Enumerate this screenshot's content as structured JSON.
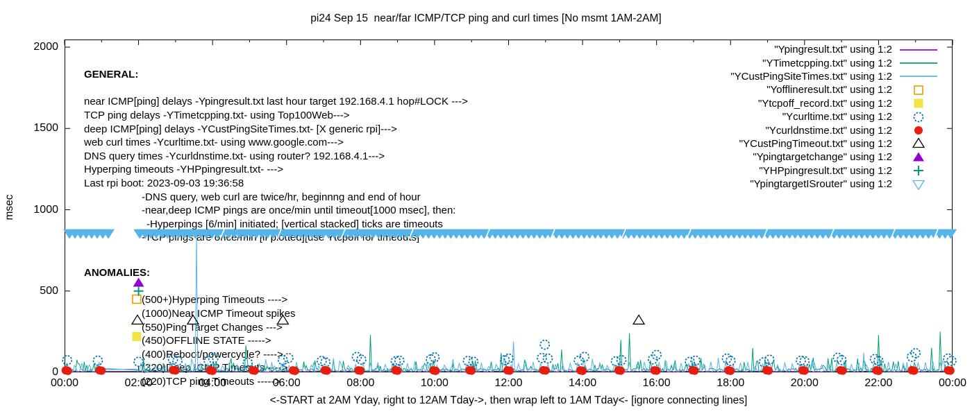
{
  "general": {
    "heading": "GENERAL:",
    "lines": [
      {
        "text": "near ICMP[ping] delays -Ypingresult.txt last hour target 192.168.4.1 hop#LOCK --->",
        "indent": 0
      },
      {
        "text": "TCP ping delays -YTimetcpping.txt- using Top100Web--->",
        "indent": 0
      },
      {
        "text": "deep ICMP[ping] delays -YCustPingSiteTimes.txt- [X generic rpi]--->",
        "indent": 0
      },
      {
        "text": "web curl times -Ycurltime.txt- using www.google.com--->",
        "indent": 0
      },
      {
        "text": "DNS query times -Ycurldnstime.txt- using router? 192.168.4.1--->",
        "indent": 0
      },
      {
        "text": "Hyperping timeouts -YHPpingresult.txt- --->",
        "indent": 0
      },
      {
        "text": "Last rpi boot: 2023-09-03 19:36:58",
        "indent": 0
      },
      {
        "text": "-DNS query, web curl are twice/hr, beginnng and end of hour",
        "indent": 1
      },
      {
        "text": "-near,deep ICMP pings are once/min until timeout[1000 msec], then:",
        "indent": 1
      },
      {
        "text": "-Hyperpings [6/min] initiated; [vertical stacked] ticks are timeouts",
        "indent": 2
      },
      {
        "text": "-TCP pings are once/min [if plotted][use Ytcpoff for timeouts]",
        "indent": 1
      }
    ]
  },
  "anomalies": {
    "heading": "ANOMALIES:",
    "lines": [
      {
        "text": "(500+)Hyperping Timeouts ---->",
        "indent": 1
      },
      {
        "text": "(1000)Near ICMP Timeout spikes",
        "indent": 1
      },
      {
        "text": "(550)Ping Target Changes --->",
        "indent": 1
      },
      {
        "text": "(450)OFFLINE STATE ----->",
        "indent": 1
      },
      {
        "text": "(400)Reboot/powercycle? ---->",
        "indent": 1
      },
      {
        "text": "(320)Deep ICMP Timeouts ---->",
        "indent": 1
      },
      {
        "text": "(220)TCP ping Timeouts ----->",
        "indent": 1
      }
    ]
  },
  "chart_data": {
    "type": "line",
    "title": "pi24 Sep 15  near/far ICMP/TCP ping and curl times [No msmt 1AM-2AM]",
    "xlabel": "<-START at 2AM Yday, right to 12AM Tday->, then wrap left to 1AM Tday<- [ignore connecting lines]",
    "ylabel": "msec",
    "xlim_hours": [
      0,
      24
    ],
    "ylim": [
      0,
      2000
    ],
    "grid": false,
    "legend_position": "top-right",
    "x_tick_hours": [
      0,
      2,
      4,
      6,
      8,
      10,
      12,
      14,
      16,
      18,
      20,
      22,
      24
    ],
    "x_tick_labels": [
      "00:00",
      "02:00",
      "04:00",
      "06:00",
      "08:00",
      "10:00",
      "12:00",
      "14:00",
      "16:00",
      "18:00",
      "20:00",
      "22:00",
      "00:00"
    ],
    "y_ticks": [
      0,
      500,
      1000,
      1500,
      2000
    ],
    "no_measurement_gap_hours": [
      1.05,
      1.93
    ],
    "series": [
      {
        "name": "\"Ypingresult.txt\" using 1:2",
        "kind": "noisy-line",
        "marker": "line",
        "color": "#9400d3",
        "baseline_msec": [
          2,
          8
        ],
        "spikes": []
      },
      {
        "name": "\"YTimetcpping.txt\" using 1:2",
        "kind": "noisy-line",
        "marker": "line",
        "color": "#009e73",
        "baseline_msec": [
          3,
          90
        ],
        "spikes": [
          [
            4.9,
            165
          ],
          [
            8.26,
            230
          ],
          [
            11.8,
            120
          ],
          [
            13.45,
            140
          ],
          [
            15.02,
            200
          ],
          [
            15.28,
            240
          ],
          [
            18.6,
            150
          ],
          [
            22.0,
            230
          ],
          [
            23.45,
            150
          ],
          [
            23.68,
            250
          ]
        ]
      },
      {
        "name": "\"YCustPingSiteTimes.txt\" using 1:2",
        "kind": "sawtooth-line",
        "marker": "line",
        "color": "#56b4e9",
        "baseline_msec": [
          5,
          55
        ],
        "spikes": [
          [
            3.58,
            850
          ],
          [
            12.13,
            190
          ],
          [
            21.6,
            120
          ]
        ]
      },
      {
        "name": "\"Yofflineresult.txt\" using 1:2",
        "kind": "points",
        "marker": "square-open",
        "color": "#e69f00",
        "points": [
          [
            1.95,
            450
          ]
        ]
      },
      {
        "name": "\"Ytcpoff_record.txt\" using 1:2",
        "kind": "points",
        "marker": "square-filled",
        "color": "#f0e442",
        "points": [
          [
            1.95,
            220
          ]
        ]
      },
      {
        "name": "\"Ycurltime.txt\" using 1:2",
        "kind": "points",
        "marker": "circle-open",
        "color": "#0072b2",
        "points": [
          [
            0.07,
            75
          ],
          [
            0.9,
            72
          ],
          [
            2.0,
            65
          ],
          [
            2.93,
            80
          ],
          [
            3.05,
            70
          ],
          [
            3.9,
            68
          ],
          [
            4.02,
            85
          ],
          [
            4.95,
            60
          ],
          [
            5.9,
            75
          ],
          [
            6.05,
            88
          ],
          [
            6.95,
            70
          ],
          [
            7.05,
            62
          ],
          [
            7.9,
            95
          ],
          [
            8.02,
            78
          ],
          [
            8.95,
            68
          ],
          [
            9.05,
            72
          ],
          [
            9.9,
            80
          ],
          [
            10.0,
            92
          ],
          [
            10.9,
            70
          ],
          [
            11.05,
            65
          ],
          [
            11.9,
            75
          ],
          [
            12.0,
            85
          ],
          [
            12.9,
            88
          ],
          [
            12.98,
            170
          ],
          [
            13.06,
            85
          ],
          [
            13.9,
            72
          ],
          [
            14.05,
            95
          ],
          [
            14.9,
            68
          ],
          [
            15.05,
            75
          ],
          [
            15.9,
            80
          ],
          [
            16.0,
            107
          ],
          [
            16.9,
            65
          ],
          [
            17.05,
            72
          ],
          [
            17.9,
            85
          ],
          [
            18.0,
            70
          ],
          [
            18.9,
            62
          ],
          [
            19.05,
            78
          ],
          [
            19.9,
            72
          ],
          [
            20.0,
            68
          ],
          [
            20.9,
            90
          ],
          [
            21.0,
            75
          ],
          [
            21.9,
            82
          ],
          [
            22.0,
            70
          ],
          [
            22.9,
            95
          ],
          [
            23.0,
            118
          ],
          [
            23.88,
            85
          ],
          [
            23.97,
            70
          ]
        ]
      },
      {
        "name": "\"Ycurldnstime.txt\" using 1:2",
        "kind": "points",
        "marker": "circle-filled",
        "color": "#e51e10",
        "points": [
          [
            0.03,
            12
          ],
          [
            0.09,
            9
          ],
          [
            0.94,
            13
          ],
          [
            1.0,
            10
          ],
          [
            2.93,
            14
          ],
          [
            3.0,
            11
          ],
          [
            3.93,
            12
          ],
          [
            4.0,
            9
          ],
          [
            5.08,
            13
          ],
          [
            5.14,
            10
          ],
          [
            6.17,
            12
          ],
          [
            6.23,
            9
          ],
          [
            7.03,
            13
          ],
          [
            7.09,
            10
          ],
          [
            7.94,
            12
          ],
          [
            8.0,
            10
          ],
          [
            8.94,
            13
          ],
          [
            9.0,
            10
          ],
          [
            9.97,
            12
          ],
          [
            10.03,
            9
          ],
          [
            10.94,
            13
          ],
          [
            11.0,
            10
          ],
          [
            11.97,
            12
          ],
          [
            12.03,
            10
          ],
          [
            12.94,
            13
          ],
          [
            13.0,
            11
          ],
          [
            13.94,
            12
          ],
          [
            14.0,
            9
          ],
          [
            14.97,
            13
          ],
          [
            15.03,
            10
          ],
          [
            15.94,
            12
          ],
          [
            16.0,
            10
          ],
          [
            16.97,
            13
          ],
          [
            17.03,
            10
          ],
          [
            17.94,
            12
          ],
          [
            18.0,
            9
          ],
          [
            18.97,
            13
          ],
          [
            19.03,
            10
          ],
          [
            19.94,
            12
          ],
          [
            20.0,
            10
          ],
          [
            20.97,
            13
          ],
          [
            21.03,
            10
          ],
          [
            21.94,
            12
          ],
          [
            22.0,
            9
          ],
          [
            22.9,
            13
          ],
          [
            22.96,
            10
          ],
          [
            23.88,
            12
          ],
          [
            23.94,
            10
          ]
        ]
      },
      {
        "name": "\"YCustPingTimeout.txt\" using 1:2",
        "kind": "points",
        "marker": "triangle-up-open",
        "color": "#000000",
        "points": [
          [
            1.97,
            320
          ],
          [
            3.47,
            320
          ],
          [
            5.9,
            320
          ],
          [
            15.52,
            320
          ]
        ]
      },
      {
        "name": "\"Ypingtargetchange\" using 1:2",
        "kind": "points",
        "marker": "triangle-up-filled",
        "color": "#9400d3",
        "points": [
          [
            2.0,
            550
          ]
        ]
      },
      {
        "name": "\"YHPpingresult.txt\" using 1:2",
        "kind": "points",
        "marker": "plus",
        "color": "#009e73",
        "points": [
          [
            2.0,
            500
          ]
        ]
      },
      {
        "name": "\"YpingtargetISrouter\" using 1:2",
        "kind": "band",
        "marker": "triangle-down-open",
        "color": "#56b4e9",
        "value_msec": 850,
        "segments_hours": [
          [
            0,
            1.26
          ],
          [
            1.9,
            24
          ]
        ]
      }
    ]
  }
}
